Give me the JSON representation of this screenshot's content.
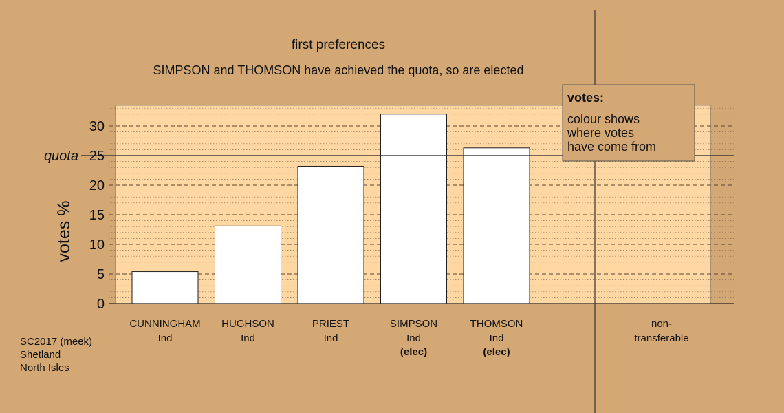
{
  "chart_data": {
    "type": "bar",
    "title": "first preferences",
    "subtitle": "SIMPSON and THOMSON have achieved the quota, so are elected",
    "ylabel": "votes %",
    "ylim": [
      0,
      33.5
    ],
    "yticks": [
      0,
      5,
      10,
      15,
      20,
      25,
      30
    ],
    "quota": 25,
    "quota_label": "quota",
    "categories": [
      {
        "name": "CUNNINGHAM",
        "party": "Ind",
        "status": ""
      },
      {
        "name": "HUGHSON",
        "party": "Ind",
        "status": ""
      },
      {
        "name": "PRIEST",
        "party": "Ind",
        "status": ""
      },
      {
        "name": "SIMPSON",
        "party": "Ind",
        "status": "(elec)"
      },
      {
        "name": "THOMSON",
        "party": "Ind",
        "status": "(elec)"
      }
    ],
    "values": [
      5.4,
      13.1,
      23.2,
      32.0,
      26.3
    ],
    "nontransferable": {
      "label_line1": "non-",
      "label_line2": "transferable",
      "value": 0
    },
    "legend": {
      "title": "votes:",
      "lines": [
        "colour shows",
        "where votes",
        "have come from"
      ],
      "position": "top-right"
    },
    "colors": {
      "background": "#d4a874",
      "plot": "#ffd7a3",
      "bar": "#ffffff"
    }
  },
  "footer": {
    "line1": "SC2017 (meek)",
    "line2": "Shetland",
    "line3": "North Isles"
  }
}
